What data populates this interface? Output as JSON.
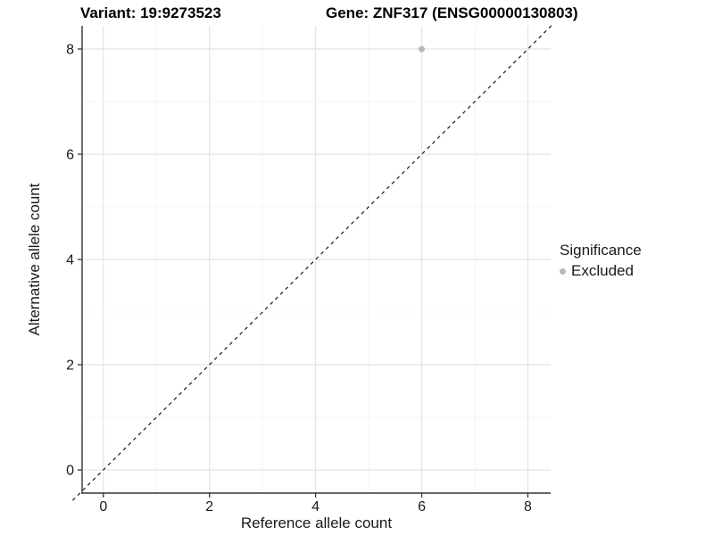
{
  "title": {
    "variant": "Variant: 19:9273523",
    "gene": "Gene: ZNF317 (ENSG00000130803)"
  },
  "axes": {
    "x_label": "Reference allele count",
    "y_label": "Alternative allele count"
  },
  "legend": {
    "title": "Significance",
    "items": [
      {
        "label": "Excluded",
        "color": "#b8b8b8"
      }
    ]
  },
  "chart_data": {
    "type": "scatter",
    "title": "Variant: 19:9273523    Gene: ZNF317 (ENSG00000130803)",
    "xlabel": "Reference allele count",
    "ylabel": "Alternative allele count",
    "xlim": [
      -0.4,
      8.43
    ],
    "ylim": [
      -0.44,
      8.44
    ],
    "x_ticks": [
      0,
      2,
      4,
      6,
      8
    ],
    "y_ticks": [
      0,
      2,
      4,
      6,
      8
    ],
    "grid_interval": 1,
    "grid": "on",
    "points": [
      {
        "x": 6,
        "y": 8,
        "series": "Excluded",
        "color": "#b8b8b8"
      }
    ],
    "reference_line": {
      "type": "identity",
      "slope": 1,
      "intercept": 0,
      "style": "dashed",
      "color": "#1a1a1a",
      "from": -0.58,
      "to": 8.47
    },
    "legend": {
      "title": "Significance",
      "position": "right",
      "entries": [
        {
          "label": "Excluded",
          "color": "#b8b8b8"
        }
      ]
    },
    "colors": {
      "background": "#ffffff",
      "grid_major": "#e4e4e4",
      "grid_minor": "#f1f1f1",
      "axis_line": "#333333",
      "point": "#b8b8b8"
    }
  }
}
